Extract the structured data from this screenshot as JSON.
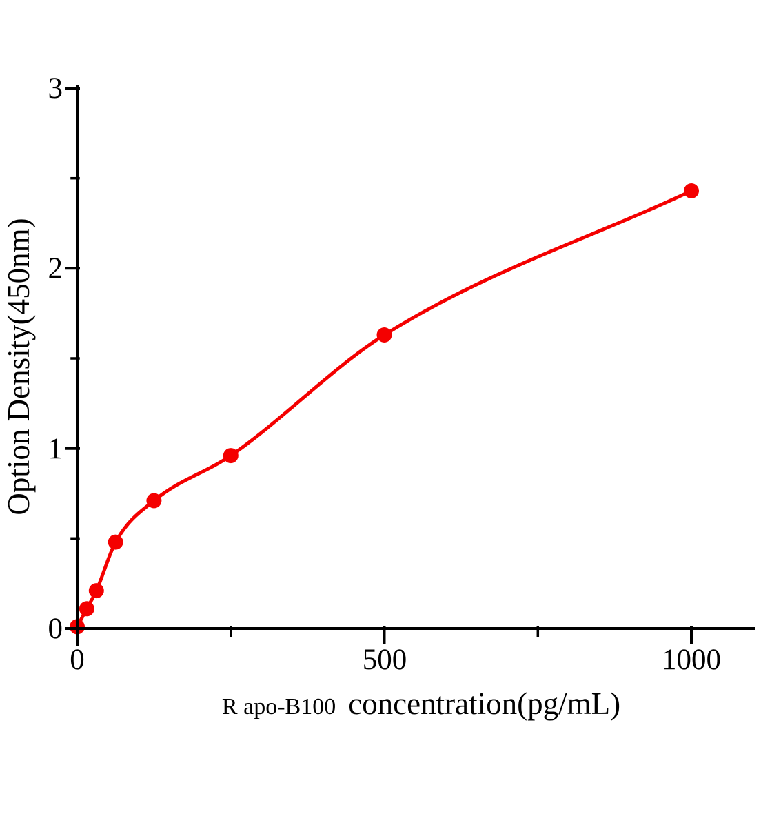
{
  "page": {
    "background": "#ffffff",
    "description_visible_text_only": true
  },
  "chart_data": {
    "type": "scatter",
    "subtype": "standard-curve-with-fit-line",
    "title": "",
    "ylabel": "Option Density(450nm)",
    "xlabel_prefix": "R apo-B100",
    "xlabel_main": "concentration(pg/mL)",
    "x": [
      0,
      15.6,
      31.2,
      62.5,
      125,
      250,
      500,
      1000
    ],
    "y": [
      0.01,
      0.11,
      0.21,
      0.48,
      0.71,
      0.96,
      1.63,
      2.43
    ],
    "points": [
      {
        "x": 0,
        "y": 0.01
      },
      {
        "x": 15.6,
        "y": 0.11
      },
      {
        "x": 31.2,
        "y": 0.21
      },
      {
        "x": 62.5,
        "y": 0.48
      },
      {
        "x": 125,
        "y": 0.71
      },
      {
        "x": 250,
        "y": 0.96
      },
      {
        "x": 500,
        "y": 1.63
      },
      {
        "x": 1000,
        "y": 2.43
      }
    ],
    "xlim": [
      0,
      1100
    ],
    "ylim": [
      0,
      3
    ],
    "x_major_ticks": [
      0,
      500,
      1000
    ],
    "x_tick_labels": [
      "0",
      "500",
      "1000"
    ],
    "x_minor_ticks": [
      250,
      750
    ],
    "y_major_ticks": [
      0,
      1,
      2,
      3
    ],
    "y_tick_labels": [
      "0",
      "1",
      "2",
      "3"
    ],
    "y_minor_ticks": [
      0.5,
      1.5,
      2.5
    ],
    "grid": false,
    "legend": "none",
    "line_through_points": true,
    "colors": {
      "series": "#f40000",
      "axis": "#000000",
      "background": "#ffffff"
    },
    "marker": {
      "shape": "circle",
      "radius_px": 11
    }
  }
}
